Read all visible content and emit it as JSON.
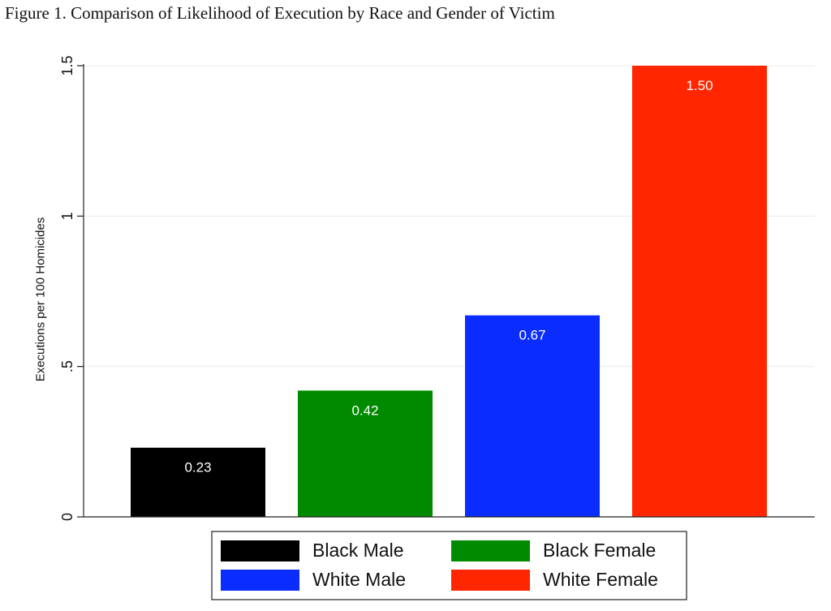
{
  "figure_title": "Figure 1. Comparison of Likelihood of Execution by Race and Gender of Victim",
  "chart_data": {
    "type": "bar",
    "title": "Figure 1. Comparison of Likelihood of Execution by Race and Gender of Victim",
    "xlabel": "",
    "ylabel": "Executions per 100 Homicides",
    "ylim": [
      0,
      1.5
    ],
    "yticks": [
      {
        "value": 0,
        "label": "0"
      },
      {
        "value": 0.5,
        "label": ".5"
      },
      {
        "value": 1,
        "label": "1"
      },
      {
        "value": 1.5,
        "label": "1.5"
      }
    ],
    "grid": true,
    "legend_position": "bottom",
    "categories": [
      "Black Male",
      "Black Female",
      "White Male",
      "White Female"
    ],
    "values": [
      0.23,
      0.42,
      0.67,
      1.5
    ],
    "data_labels": [
      "0.23",
      "0.42",
      "0.67",
      "1.50"
    ],
    "colors": [
      "#000000",
      "#008a00",
      "#0a2cff",
      "#ff2600"
    ]
  }
}
